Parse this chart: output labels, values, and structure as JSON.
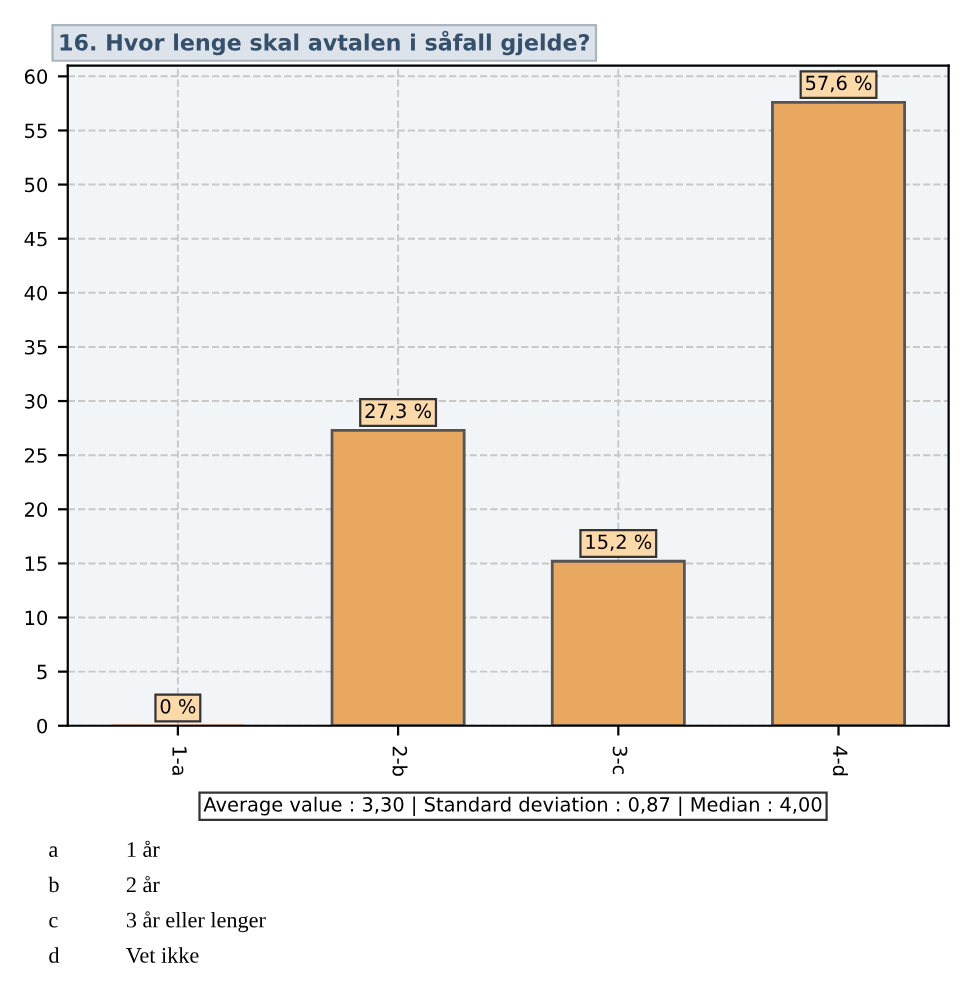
{
  "chart_data": {
    "type": "bar",
    "title": "16. Hvor lenge skal avtalen i såfall gjelde?",
    "categories": [
      "1-a",
      "2-b",
      "3-c",
      "4-d"
    ],
    "values": [
      0,
      27.3,
      15.2,
      57.6
    ],
    "value_labels": [
      "0 %",
      "27,3 %",
      "15,2 %",
      "57,6 %"
    ],
    "color": "#e8a860",
    "ylim": [
      0,
      61
    ],
    "yticks": [
      0,
      5,
      10,
      15,
      20,
      25,
      30,
      35,
      40,
      45,
      50,
      55,
      60
    ],
    "grid": true,
    "annotations": [
      "Average value : 3,30 | Standard deviation : 0,87 | Median : 4,00",
      "a\t1 år",
      "b\t2 år",
      "c\t3 år eller lenger",
      "d\tVet ikke"
    ]
  }
}
